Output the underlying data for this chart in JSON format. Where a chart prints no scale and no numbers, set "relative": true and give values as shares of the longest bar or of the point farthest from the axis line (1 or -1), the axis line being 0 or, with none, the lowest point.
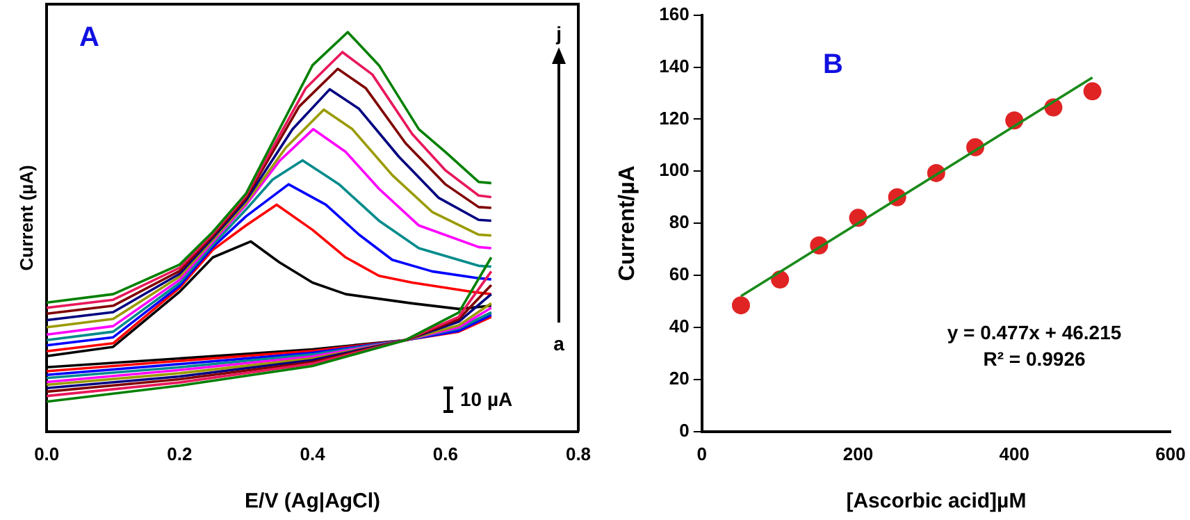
{
  "chart_data": [
    {
      "type": "line",
      "title": "A",
      "xlabel": "E/V (Ag|AgCl)",
      "ylabel": "Current (µA)",
      "relative": true,
      "xlim": [
        0,
        0.8
      ],
      "xticks": [
        {
          "value": 0,
          "label": "0.0"
        },
        {
          "value": 0.2,
          "label": "0.2"
        },
        {
          "value": 0.4,
          "label": "0.4"
        },
        {
          "value": 0.6,
          "label": "0.6"
        },
        {
          "value": 0.8,
          "label": "0.8"
        }
      ],
      "grid": false,
      "legend": false,
      "marker": "none",
      "annotations": [
        "j",
        "a",
        "10 µA"
      ],
      "series": [
        {
          "color": "#000000",
          "x": [
            0,
            0.1,
            0.2,
            0.25,
            0.307,
            0.35,
            0.4,
            0.45,
            0.55,
            0.62,
            0.669
          ],
          "values": [
            0.189,
            0.212,
            0.35,
            0.436,
            0.476,
            0.424,
            0.373,
            0.344,
            0.321,
            0.307,
            0.315
          ]
        },
        {
          "color": "#000000",
          "x": [
            0,
            0.2,
            0.4,
            0.54,
            0.62,
            0.669
          ],
          "values": [
            0.161,
            0.183,
            0.206,
            0.229,
            0.258,
            0.298
          ]
        },
        {
          "color": "#ff0000",
          "x": [
            0,
            0.1,
            0.2,
            0.25,
            0.3,
            0.346,
            0.4,
            0.45,
            0.5,
            0.55,
            0.64,
            0.669
          ],
          "values": [
            0.201,
            0.221,
            0.36,
            0.455,
            0.516,
            0.568,
            0.505,
            0.436,
            0.39,
            0.373,
            0.35,
            0.344
          ]
        },
        {
          "color": "#ff0000",
          "x": [
            0,
            0.2,
            0.4,
            0.54,
            0.62,
            0.669
          ],
          "values": [
            0.151,
            0.177,
            0.202,
            0.229,
            0.25,
            0.287
          ]
        },
        {
          "color": "#0000ff",
          "x": [
            0,
            0.1,
            0.2,
            0.25,
            0.3,
            0.364,
            0.42,
            0.47,
            0.52,
            0.58,
            0.65,
            0.669
          ],
          "values": [
            0.216,
            0.236,
            0.365,
            0.462,
            0.539,
            0.619,
            0.568,
            0.493,
            0.43,
            0.401,
            0.384,
            0.381
          ]
        },
        {
          "color": "#0000ff",
          "x": [
            0,
            0.2,
            0.4,
            0.54,
            0.62,
            0.669
          ],
          "values": [
            0.142,
            0.169,
            0.197,
            0.229,
            0.252,
            0.292
          ]
        },
        {
          "color": "#008b8b",
          "x": [
            0,
            0.1,
            0.2,
            0.25,
            0.3,
            0.34,
            0.385,
            0.44,
            0.5,
            0.56,
            0.65,
            0.669
          ],
          "values": [
            0.229,
            0.25,
            0.372,
            0.468,
            0.556,
            0.631,
            0.679,
            0.619,
            0.528,
            0.459,
            0.415,
            0.413
          ]
        },
        {
          "color": "#008b8b",
          "x": [
            0,
            0.2,
            0.4,
            0.54,
            0.62,
            0.669
          ],
          "values": [
            0.134,
            0.161,
            0.193,
            0.229,
            0.258,
            0.298
          ]
        },
        {
          "color": "#ff00ff",
          "x": [
            0,
            0.1,
            0.2,
            0.25,
            0.3,
            0.35,
            0.401,
            0.45,
            0.5,
            0.56,
            0.65,
            0.669
          ],
          "values": [
            0.243,
            0.264,
            0.38,
            0.475,
            0.568,
            0.677,
            0.757,
            0.7,
            0.608,
            0.516,
            0.462,
            0.459
          ]
        },
        {
          "color": "#ff00ff",
          "x": [
            0,
            0.2,
            0.4,
            0.54,
            0.62,
            0.669
          ],
          "values": [
            0.124,
            0.154,
            0.188,
            0.229,
            0.261,
            0.31
          ]
        },
        {
          "color": "#9a9a00",
          "x": [
            0,
            0.1,
            0.2,
            0.25,
            0.3,
            0.36,
            0.417,
            0.46,
            0.52,
            0.58,
            0.65,
            0.669
          ],
          "values": [
            0.261,
            0.282,
            0.388,
            0.48,
            0.573,
            0.711,
            0.806,
            0.757,
            0.642,
            0.55,
            0.493,
            0.491
          ]
        },
        {
          "color": "#9a9a00",
          "x": [
            0,
            0.2,
            0.4,
            0.54,
            0.62,
            0.669
          ],
          "values": [
            0.117,
            0.146,
            0.183,
            0.229,
            0.266,
            0.321
          ]
        },
        {
          "color": "#000080",
          "x": [
            0,
            0.1,
            0.2,
            0.25,
            0.3,
            0.37,
            0.426,
            0.47,
            0.53,
            0.59,
            0.65,
            0.669
          ],
          "values": [
            0.279,
            0.299,
            0.395,
            0.485,
            0.579,
            0.757,
            0.857,
            0.808,
            0.688,
            0.585,
            0.53,
            0.528
          ]
        },
        {
          "color": "#000080",
          "x": [
            0,
            0.2,
            0.4,
            0.54,
            0.62,
            0.669
          ],
          "values": [
            0.109,
            0.138,
            0.179,
            0.229,
            0.275,
            0.344
          ]
        },
        {
          "color": "#800000",
          "x": [
            0,
            0.1,
            0.2,
            0.25,
            0.3,
            0.38,
            0.438,
            0.48,
            0.54,
            0.6,
            0.65,
            0.669
          ],
          "values": [
            0.295,
            0.315,
            0.402,
            0.49,
            0.585,
            0.814,
            0.908,
            0.86,
            0.722,
            0.619,
            0.562,
            0.56
          ]
        },
        {
          "color": "#800000",
          "x": [
            0,
            0.2,
            0.4,
            0.54,
            0.62,
            0.669
          ],
          "values": [
            0.1,
            0.131,
            0.174,
            0.229,
            0.281,
            0.367
          ]
        },
        {
          "color": "#e8185a",
          "x": [
            0,
            0.1,
            0.2,
            0.25,
            0.3,
            0.39,
            0.445,
            0.49,
            0.55,
            0.6,
            0.65,
            0.669
          ],
          "values": [
            0.31,
            0.33,
            0.41,
            0.495,
            0.591,
            0.86,
            0.95,
            0.894,
            0.745,
            0.654,
            0.591,
            0.587
          ]
        },
        {
          "color": "#e8185a",
          "x": [
            0,
            0.2,
            0.4,
            0.54,
            0.62,
            0.669
          ],
          "values": [
            0.089,
            0.123,
            0.17,
            0.229,
            0.287,
            0.401
          ]
        },
        {
          "color": "#008000",
          "x": [
            0,
            0.1,
            0.2,
            0.25,
            0.3,
            0.4,
            0.453,
            0.5,
            0.56,
            0.6,
            0.65,
            0.669
          ],
          "values": [
            0.323,
            0.344,
            0.418,
            0.5,
            0.596,
            0.917,
            1,
            0.917,
            0.757,
            0.7,
            0.625,
            0.622
          ]
        },
        {
          "color": "#008000",
          "x": [
            0,
            0.2,
            0.4,
            0.54,
            0.62,
            0.669
          ],
          "values": [
            0.075,
            0.115,
            0.164,
            0.229,
            0.298,
            0.436
          ]
        }
      ]
    },
    {
      "type": "scatter",
      "title": "B",
      "xlabel": "[Ascorbic acid]µM",
      "ylabel": "Current/µA",
      "xlim": [
        0,
        600
      ],
      "xticks": [
        0,
        200,
        400,
        600
      ],
      "ylim": [
        0,
        160
      ],
      "yticks": [
        0,
        20,
        40,
        60,
        80,
        100,
        120,
        140,
        160
      ],
      "grid": false,
      "legend": false,
      "annotations": [
        "y = 0.477x + 46.215",
        "R² = 0.9926"
      ],
      "series": [
        {
          "type": "scatter",
          "marker": "circle",
          "color": "#e02424",
          "x": [
            50,
            100,
            150,
            200,
            250,
            300,
            350,
            400,
            450,
            500
          ],
          "values": [
            48.5,
            58.4,
            71.5,
            82.1,
            90,
            99.3,
            109.2,
            119.5,
            124.5,
            130.7
          ]
        },
        {
          "type": "line",
          "marker": "none",
          "color": "#1a8a1a",
          "x": [
            50,
            500
          ],
          "values": [
            52,
            136
          ]
        }
      ]
    }
  ]
}
